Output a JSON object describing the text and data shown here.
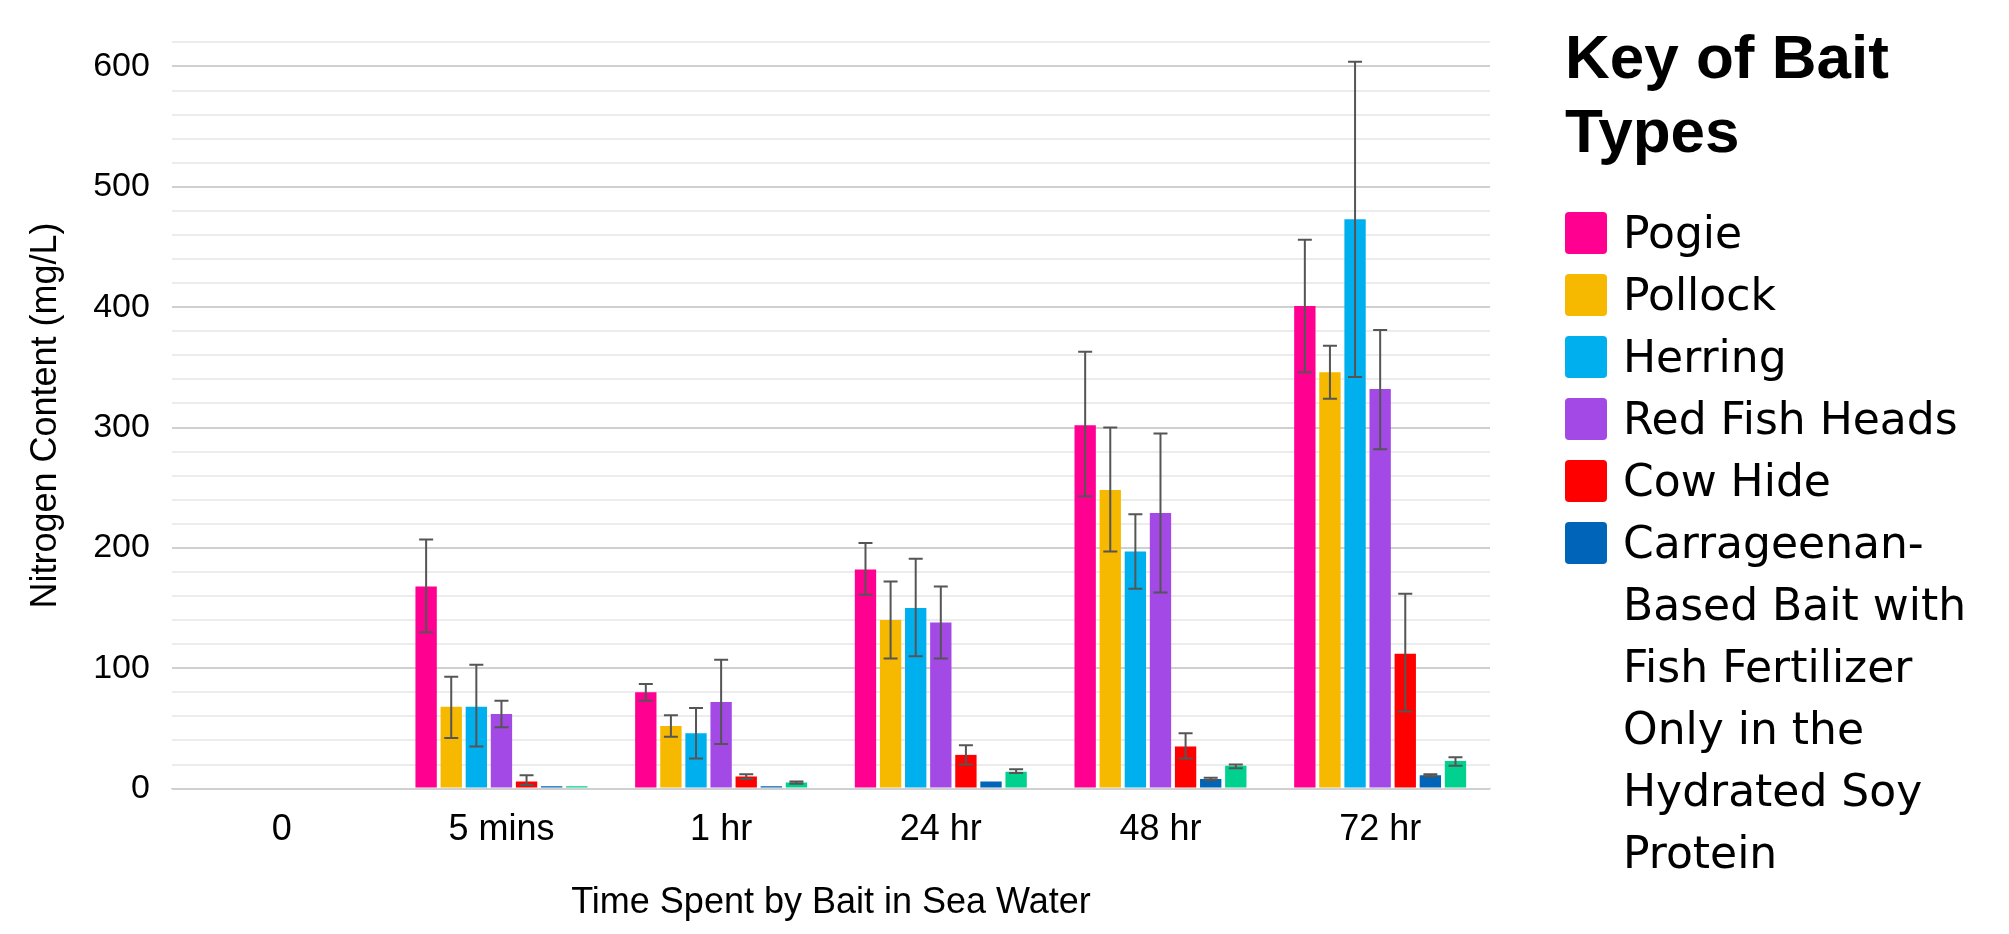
{
  "chart_data": {
    "type": "bar",
    "xlabel": "Time Spent by Bait in Sea Water",
    "ylabel": "Nitrogen Content (mg/L)",
    "legend_title": "Key of Bait Types",
    "categories": [
      "0",
      "5 mins",
      "1 hr",
      "24 hr",
      "48 hr",
      "72 hr"
    ],
    "series": [
      {
        "name": "Pogie",
        "color": "#ff0090",
        "values": [
          0,
          168,
          80,
          182,
          302,
          401
        ],
        "errors": [
          null,
          [
            130,
            207
          ],
          [
            73,
            87
          ],
          [
            161,
            204
          ],
          [
            243,
            363
          ],
          [
            346,
            456
          ]
        ]
      },
      {
        "name": "Pollock",
        "color": "#f7b900",
        "values": [
          0,
          68,
          52,
          140,
          248,
          346
        ],
        "errors": [
          null,
          [
            42,
            93
          ],
          [
            43,
            61
          ],
          [
            108,
            172
          ],
          [
            197,
            300
          ],
          [
            324,
            368
          ]
        ]
      },
      {
        "name": "Herring",
        "color": "#00b0ee",
        "values": [
          0,
          68,
          46,
          150,
          197,
          473
        ],
        "errors": [
          null,
          [
            35,
            103
          ],
          [
            25,
            67
          ],
          [
            110,
            191
          ],
          [
            166,
            228
          ],
          [
            342,
            604
          ]
        ]
      },
      {
        "name": "Red Fish Heads",
        "color": "#a349e6",
        "values": [
          0,
          62,
          72,
          138,
          229,
          332
        ],
        "errors": [
          null,
          [
            51,
            73
          ],
          [
            37,
            107
          ],
          [
            108,
            168
          ],
          [
            163,
            295
          ],
          [
            282,
            381
          ]
        ]
      },
      {
        "name": "Cow Hide",
        "color": "#ff0000",
        "values": [
          0,
          6,
          10,
          28,
          35,
          112
        ],
        "errors": [
          null,
          [
            3,
            11
          ],
          [
            8,
            12
          ],
          [
            20,
            36
          ],
          [
            25,
            46
          ],
          [
            64,
            162
          ]
        ]
      },
      {
        "name": "Carrageenan-Based Bait with Fish Fertilizer Only in the Hydrated Soy Protein",
        "color": "#0065b8",
        "values": [
          0,
          2,
          2,
          6,
          8,
          11
        ],
        "errors": [
          null,
          null,
          null,
          null,
          [
            7,
            9
          ],
          [
            10,
            12
          ]
        ]
      },
      {
        "color": "#00d18e",
        "values": [
          0,
          2,
          5,
          14,
          19,
          23
        ],
        "errors": [
          null,
          null,
          [
            4,
            6
          ],
          [
            13,
            16
          ],
          [
            17,
            20
          ],
          [
            19,
            26
          ]
        ]
      }
    ],
    "ylim": [
      0,
      620
    ],
    "yticks": [
      0,
      {
        "value": 20,
        "label": null
      },
      {
        "value": 40,
        "label": null
      },
      {
        "value": 60,
        "label": null
      },
      {
        "value": 80,
        "label": null
      },
      100,
      {
        "value": 120,
        "label": null
      },
      {
        "value": 140,
        "label": null
      },
      {
        "value": 160,
        "label": null
      },
      {
        "value": 180,
        "label": null
      },
      200,
      {
        "value": 220,
        "label": null
      },
      {
        "value": 240,
        "label": null
      },
      {
        "value": 260,
        "label": null
      },
      {
        "value": 280,
        "label": null
      },
      300,
      {
        "value": 320,
        "label": null
      },
      {
        "value": 340,
        "label": null
      },
      {
        "value": 360,
        "label": null
      },
      {
        "value": 380,
        "label": null
      },
      400,
      {
        "value": 420,
        "label": null
      },
      {
        "value": 440,
        "label": null
      },
      {
        "value": 460,
        "label": null
      },
      {
        "value": 480,
        "label": null
      },
      500,
      {
        "value": 520,
        "label": null
      },
      {
        "value": 540,
        "label": null
      },
      {
        "value": 560,
        "label": null
      },
      {
        "value": 580,
        "label": null
      },
      600,
      {
        "value": 620,
        "label": null
      }
    ],
    "grid": "y",
    "legend": "right"
  }
}
